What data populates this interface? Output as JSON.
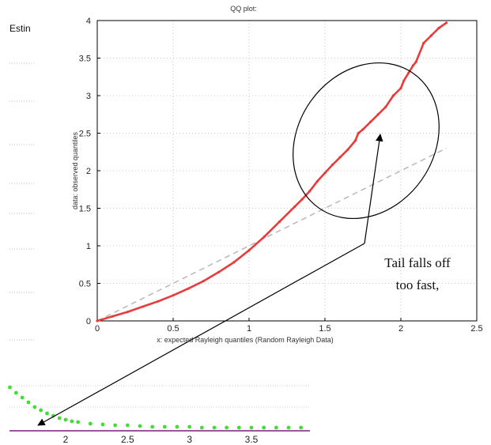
{
  "header": {
    "cropped_label": "Estin"
  },
  "chart_data": [
    {
      "type": "scatter",
      "title": "QQ plot:",
      "xlabel": "x: expected Rayleigh quantiles (Random Rayleigh Data)",
      "ylabel": "data: observed quantiles",
      "xlim": [
        0,
        2.5
      ],
      "ylim": [
        0,
        4
      ],
      "grid": true,
      "x_ticks": [
        "0",
        "0.5",
        "1",
        "1.5",
        "2",
        "2.5"
      ],
      "y_ticks": [
        "0",
        "0.5",
        "1",
        "1.5",
        "2",
        "2.5",
        "3",
        "3.5",
        "4"
      ],
      "series": [
        {
          "color": "#e83c3c",
          "x": [
            0,
            0.1,
            0.2,
            0.3,
            0.4,
            0.5,
            0.6,
            0.7,
            0.8,
            0.9,
            1.0,
            1.1,
            1.2,
            1.3,
            1.35,
            1.4,
            1.45,
            1.5,
            1.55,
            1.6,
            1.65,
            1.7,
            1.72,
            1.75,
            1.8,
            1.85,
            1.9,
            1.95,
            2.0,
            2.02,
            2.05,
            2.08,
            2.1,
            2.15,
            2.2,
            2.25,
            2.3
          ],
          "y": [
            0,
            0.06,
            0.12,
            0.19,
            0.26,
            0.34,
            0.43,
            0.53,
            0.65,
            0.78,
            0.94,
            1.12,
            1.32,
            1.52,
            1.62,
            1.73,
            1.86,
            1.97,
            2.08,
            2.18,
            2.28,
            2.4,
            2.5,
            2.55,
            2.65,
            2.75,
            2.85,
            3.0,
            3.1,
            3.2,
            3.3,
            3.4,
            3.45,
            3.7,
            3.8,
            3.9,
            3.97
          ]
        },
        {
          "style": "dashed",
          "color": "#b8b8b8",
          "x": [
            0,
            2.3
          ],
          "y": [
            0,
            2.3
          ]
        }
      ]
    },
    {
      "type": "scatter",
      "x_ticks": [
        "2",
        "2.5",
        "3",
        "3.5"
      ],
      "series": [
        {
          "color": "#44dd33",
          "x": [
            1.5,
            1.55,
            1.6,
            1.65,
            1.7,
            1.75,
            1.8,
            1.85,
            1.9,
            1.95,
            2.0,
            2.05,
            2.1,
            2.2,
            2.3,
            2.4,
            2.5,
            2.6,
            2.7,
            2.8,
            2.9,
            3.0,
            3.1,
            3.2,
            3.3,
            3.4,
            3.5,
            3.6,
            3.7,
            3.8,
            3.9,
            4.0
          ],
          "y": [
            0.62,
            0.55,
            0.48,
            0.42,
            0.36,
            0.3,
            0.26,
            0.22,
            0.19,
            0.16,
            0.14,
            0.12,
            0.11,
            0.09,
            0.08,
            0.07,
            0.07,
            0.06,
            0.05,
            0.05,
            0.05,
            0.05,
            0.04,
            0.04,
            0.04,
            0.04,
            0.04,
            0.04,
            0.04,
            0.04,
            0.04,
            0.04
          ]
        }
      ]
    }
  ],
  "annotation": {
    "line1": "Tail falls off",
    "line2": "too fast,"
  }
}
